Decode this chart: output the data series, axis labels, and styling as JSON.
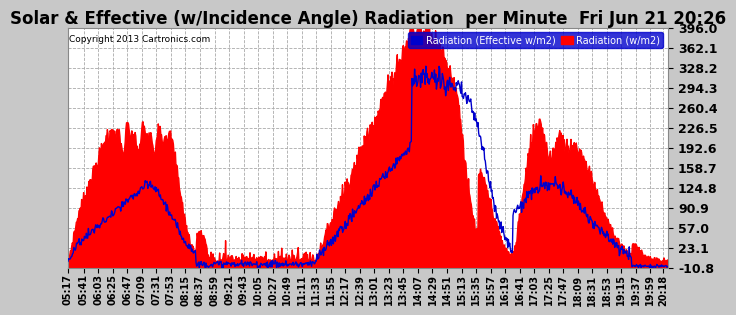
{
  "title": "Solar & Effective (w/Incidence Angle) Radiation  per Minute  Fri Jun 21 20:26",
  "copyright": "Copyright 2013 Cartronics.com",
  "legend_label1": "Radiation (Effective w/m2)",
  "legend_label2": "Radiation (w/m2)",
  "yticks": [
    396.0,
    362.1,
    328.2,
    294.3,
    260.4,
    226.5,
    192.6,
    158.7,
    124.8,
    90.9,
    57.0,
    23.1,
    -10.8
  ],
  "ylim_min": -10.8,
  "ylim_max": 396.0,
  "bg_color": "#c8c8c8",
  "plot_bg_color": "#ffffff",
  "fill_color": "#ff0000",
  "line_color": "#0000cc",
  "grid_color": "#aaaaaa",
  "title_fontsize": 12,
  "xtick_fontsize": 7,
  "ytick_fontsize": 9,
  "xtick_labels": [
    "05:17",
    "05:41",
    "06:03",
    "06:25",
    "06:47",
    "07:09",
    "07:31",
    "07:53",
    "08:15",
    "08:37",
    "08:59",
    "09:21",
    "09:43",
    "10:05",
    "10:27",
    "10:49",
    "11:11",
    "11:33",
    "11:55",
    "12:17",
    "12:39",
    "13:01",
    "13:23",
    "13:45",
    "14:07",
    "14:29",
    "14:51",
    "15:13",
    "15:35",
    "15:57",
    "16:19",
    "16:41",
    "17:03",
    "17:25",
    "17:47",
    "18:09",
    "18:31",
    "18:53",
    "19:15",
    "19:37",
    "19:59",
    "20:18"
  ]
}
